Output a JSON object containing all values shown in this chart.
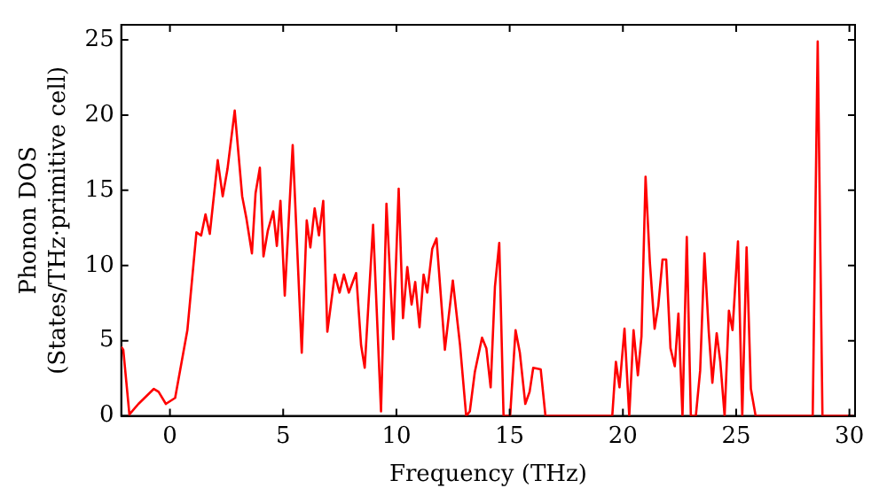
{
  "chart_data": {
    "type": "line",
    "xlabel": "Frequency (THz)",
    "ylabel": "Phonon DOS\n(States/THz·primitive cell)",
    "xlim": [
      -2.15,
      30.25
    ],
    "xticks": [
      0,
      5,
      10,
      15,
      20,
      25,
      30
    ],
    "ylim": [
      0,
      26
    ],
    "yticks": [
      0,
      5,
      10,
      15,
      20,
      25
    ],
    "grid": false,
    "legend": false,
    "marker": "none",
    "line_style": "solid",
    "series": [
      {
        "color": "#ff0000",
        "x": [
          -2.15,
          -2.06,
          -1.79,
          -1.39,
          -0.71,
          -0.5,
          -0.18,
          0.23,
          0.77,
          1.17,
          1.38,
          1.57,
          1.76,
          2.11,
          2.33,
          2.54,
          2.86,
          3.19,
          3.38,
          3.62,
          3.78,
          3.97,
          4.13,
          4.32,
          4.56,
          4.72,
          4.88,
          5.07,
          5.42,
          5.82,
          6.04,
          6.2,
          6.39,
          6.58,
          6.77,
          6.95,
          7.28,
          7.49,
          7.68,
          7.9,
          8.22,
          8.44,
          8.6,
          8.97,
          9.32,
          9.56,
          9.86,
          10.1,
          10.29,
          10.48,
          10.67,
          10.83,
          11.02,
          11.2,
          11.36,
          11.58,
          11.77,
          12.14,
          12.49,
          12.81,
          13.08,
          13.24,
          13.46,
          13.78,
          13.97,
          14.16,
          14.35,
          14.54,
          14.73,
          15.02,
          15.26,
          15.45,
          15.69,
          15.88,
          16.04,
          16.37,
          16.58,
          19.53,
          19.69,
          19.85,
          20.07,
          20.28,
          20.47,
          20.66,
          20.82,
          21.0,
          21.19,
          21.4,
          21.56,
          21.75,
          21.91,
          22.1,
          22.29,
          22.45,
          22.63,
          22.82,
          23.0,
          23.22,
          23.41,
          23.6,
          23.79,
          23.95,
          24.14,
          24.3,
          24.49,
          24.68,
          24.84,
          25.08,
          25.27,
          25.46,
          25.65,
          25.86,
          28.38,
          28.6,
          28.81,
          30.15
        ],
        "values": [
          4.6,
          4.4,
          0.1,
          0.8,
          1.8,
          1.6,
          0.8,
          1.2,
          5.7,
          12.2,
          12.0,
          13.4,
          12.1,
          17.0,
          14.6,
          16.4,
          20.3,
          14.6,
          13.1,
          10.8,
          14.8,
          16.5,
          10.6,
          12.3,
          13.6,
          11.3,
          14.3,
          8.0,
          18.0,
          4.2,
          13.0,
          11.2,
          13.8,
          12.0,
          14.3,
          5.6,
          9.4,
          8.2,
          9.4,
          8.2,
          9.5,
          4.7,
          3.2,
          12.7,
          0.3,
          14.1,
          5.1,
          15.1,
          6.5,
          9.9,
          7.4,
          8.9,
          5.9,
          9.4,
          8.2,
          11.1,
          11.8,
          4.4,
          9.0,
          4.7,
          0,
          0.3,
          2.9,
          5.2,
          4.5,
          1.9,
          8.6,
          11.5,
          0,
          0,
          5.7,
          4.2,
          0.8,
          1.6,
          3.2,
          3.1,
          0,
          0,
          3.6,
          1.9,
          5.8,
          0,
          5.7,
          2.7,
          5.3,
          15.9,
          10.2,
          5.8,
          7.3,
          10.4,
          10.4,
          4.5,
          3.3,
          6.8,
          0,
          11.9,
          0,
          0,
          3.0,
          10.8,
          5.6,
          2.2,
          5.5,
          3.6,
          0,
          7.0,
          5.7,
          11.6,
          0,
          11.2,
          1.8,
          0,
          0,
          24.9,
          0,
          0
        ]
      }
    ]
  }
}
